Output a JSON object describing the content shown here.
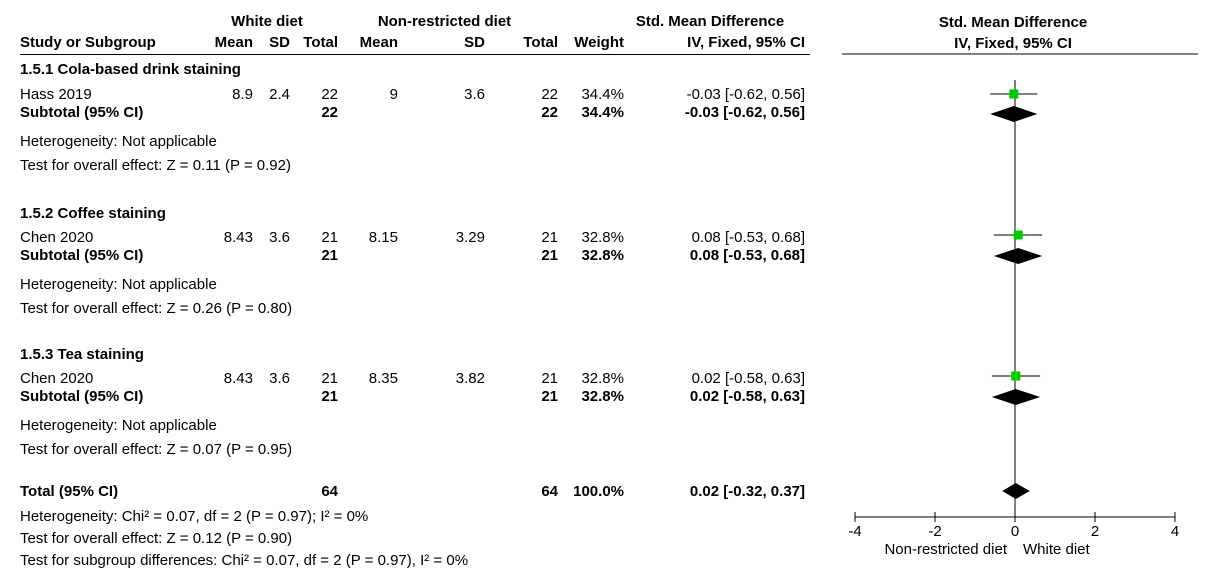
{
  "headers": {
    "group_exp": "White diet",
    "group_ctl": "Non-restricted diet",
    "smd_title": "Std. Mean Difference",
    "study": "Study or Subgroup",
    "mean": "Mean",
    "sd": "SD",
    "total": "Total",
    "weight": "Weight",
    "smd_method": "IV, Fixed, 95% CI"
  },
  "subgroups": [
    {
      "title": "1.5.1 Cola-based drink staining",
      "study": {
        "name": "Hass 2019",
        "e_mean": "8.9",
        "e_sd": "2.4",
        "e_total": "22",
        "c_mean": "9",
        "c_sd": "3.6",
        "c_total": "22",
        "weight": "34.4%",
        "ci": "-0.03 [-0.62, 0.56]"
      },
      "subtotal": {
        "label": "Subtotal (95% CI)",
        "e_total": "22",
        "c_total": "22",
        "weight": "34.4%",
        "ci": "-0.03 [-0.62, 0.56]"
      },
      "heterogeneity": "Heterogeneity: Not applicable",
      "overall": "Test for overall effect: Z = 0.11 (P = 0.92)"
    },
    {
      "title": "1.5.2 Coffee staining",
      "study": {
        "name": "Chen 2020",
        "e_mean": "8.43",
        "e_sd": "3.6",
        "e_total": "21",
        "c_mean": "8.15",
        "c_sd": "3.29",
        "c_total": "21",
        "weight": "32.8%",
        "ci": "0.08 [-0.53, 0.68]"
      },
      "subtotal": {
        "label": "Subtotal (95% CI)",
        "e_total": "21",
        "c_total": "21",
        "weight": "32.8%",
        "ci": "0.08 [-0.53, 0.68]"
      },
      "heterogeneity": "Heterogeneity: Not applicable",
      "overall": "Test for overall effect: Z = 0.26 (P = 0.80)"
    },
    {
      "title": "1.5.3 Tea staining",
      "study": {
        "name": "Chen 2020",
        "e_mean": "8.43",
        "e_sd": "3.6",
        "e_total": "21",
        "c_mean": "8.35",
        "c_sd": "3.82",
        "c_total": "21",
        "weight": "32.8%",
        "ci": "0.02 [-0.58, 0.63]"
      },
      "subtotal": {
        "label": "Subtotal (95% CI)",
        "e_total": "21",
        "c_total": "21",
        "weight": "32.8%",
        "ci": "0.02 [-0.58, 0.63]"
      },
      "heterogeneity": "Heterogeneity: Not applicable",
      "overall": "Test for overall effect: Z = 0.07 (P = 0.95)"
    }
  ],
  "total": {
    "label": "Total (95% CI)",
    "e_total": "64",
    "c_total": "64",
    "weight": "100.0%",
    "ci": "0.02 [-0.32, 0.37]",
    "heterogeneity": "Heterogeneity: Chi² = 0.07, df = 2 (P = 0.97); I² = 0%",
    "overall": "Test for overall effect: Z = 0.12 (P = 0.90)",
    "subgroup_diff": "Test for subgroup differences: Chi² = 0.07, df = 2 (P = 0.97), I² = 0%"
  },
  "colors": {
    "study_marker": "#00cc00",
    "diamond": "#000000"
  },
  "chart_data": {
    "type": "forest",
    "xlim": [
      -4,
      4
    ],
    "ticks": [
      -4,
      -2,
      0,
      2,
      4
    ],
    "left_label": "Non-restricted diet",
    "right_label": "White diet",
    "studies": [
      {
        "subgroup": "1.5.1",
        "estimate": -0.03,
        "lower": -0.62,
        "upper": 0.56,
        "weight": 34.4
      },
      {
        "subgroup": "1.5.2",
        "estimate": 0.08,
        "lower": -0.53,
        "upper": 0.68,
        "weight": 32.8
      },
      {
        "subgroup": "1.5.3",
        "estimate": 0.02,
        "lower": -0.58,
        "upper": 0.63,
        "weight": 32.8
      }
    ],
    "subtotals": [
      {
        "subgroup": "1.5.1",
        "estimate": -0.03,
        "lower": -0.62,
        "upper": 0.56
      },
      {
        "subgroup": "1.5.2",
        "estimate": 0.08,
        "lower": -0.53,
        "upper": 0.68
      },
      {
        "subgroup": "1.5.3",
        "estimate": 0.02,
        "lower": -0.58,
        "upper": 0.63
      }
    ],
    "overall": {
      "estimate": 0.02,
      "lower": -0.32,
      "upper": 0.37
    }
  }
}
